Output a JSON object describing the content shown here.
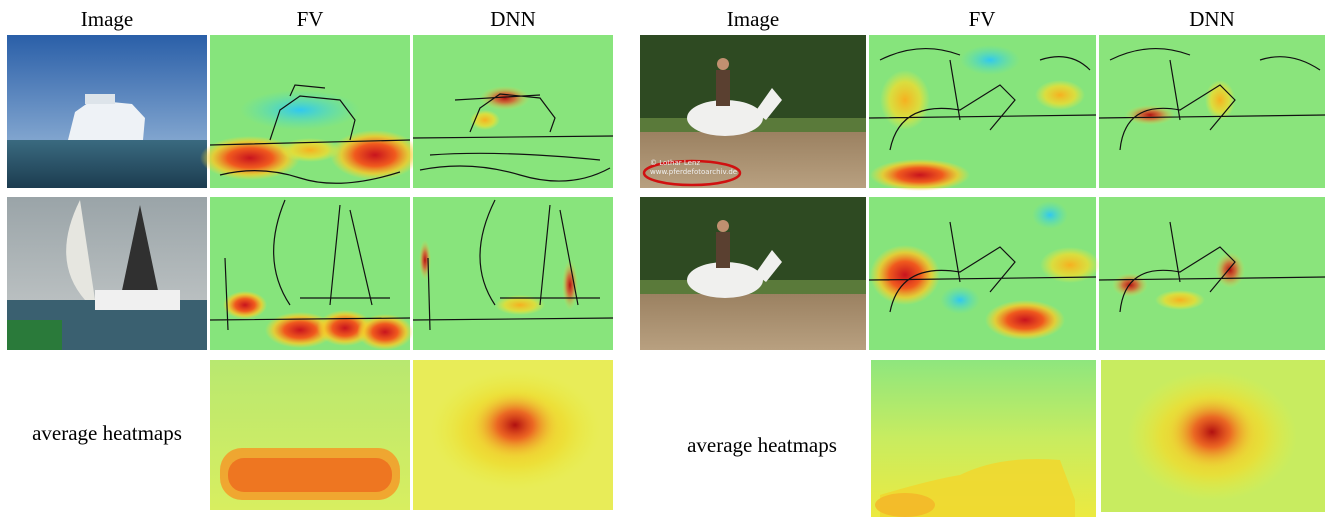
{
  "left": {
    "headers": [
      "Image",
      "FV",
      "DNN"
    ],
    "caption": "average heatmaps"
  },
  "right": {
    "headers": [
      "Image",
      "FV",
      "DNN"
    ],
    "caption": "average heatmaps",
    "watermark": [
      "© Lothar Lenz",
      "www.pferdefotoarchiv.de"
    ]
  }
}
